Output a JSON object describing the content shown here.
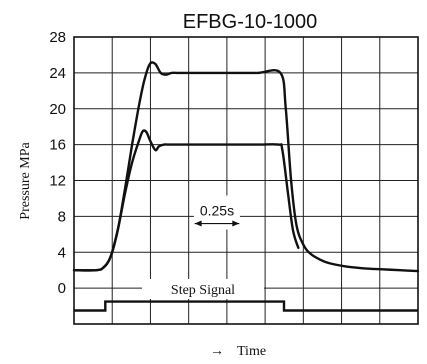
{
  "chart_data": {
    "type": "line",
    "title": "EFBG-10-1000",
    "ylabel": "Pressure  MPa",
    "xlabel": "Time",
    "xlabel_arrow": "→",
    "ylim": [
      -4,
      28
    ],
    "xlim": [
      -0.425,
      1.5
    ],
    "y_ticks": [
      "28",
      "24",
      "20",
      "16",
      "12",
      "8",
      "4",
      "0"
    ],
    "grid": true,
    "legend": "none",
    "series": [
      {
        "x": [
          -0.425,
          -0.3,
          -0.26,
          -0.22,
          -0.18,
          -0.14,
          -0.1,
          -0.06,
          -0.03,
          0.0,
          0.03,
          0.06,
          0.09,
          0.12,
          0.15,
          0.18,
          0.2,
          0.23,
          0.3,
          0.45,
          0.6,
          0.73,
          0.76,
          0.79,
          0.82,
          0.86,
          0.9,
          0.95,
          1.0,
          1.1,
          1.2,
          1.3,
          1.4,
          1.5
        ],
        "y": [
          2,
          2,
          2.3,
          3.5,
          6.5,
          11,
          16,
          20.5,
          23.3,
          25.0,
          25.0,
          24.0,
          23.8,
          24.0,
          24.0,
          24.0,
          24.0,
          24.0,
          24.0,
          24.0,
          24.0,
          24.0,
          20.0,
          12.0,
          7.0,
          4.8,
          3.8,
          3.2,
          2.8,
          2.4,
          2.2,
          2.1,
          2.0,
          1.9
        ]
      },
      {
        "x": [
          -0.425,
          -0.3,
          -0.26,
          -0.22,
          -0.18,
          -0.14,
          -0.1,
          -0.06,
          -0.04,
          -0.02,
          0.0,
          0.03,
          0.05,
          0.08,
          0.11,
          0.15,
          0.3,
          0.45,
          0.6,
          0.72,
          0.74,
          0.77,
          0.8,
          0.83
        ],
        "y": [
          2,
          2,
          2.3,
          3.5,
          6.5,
          10.5,
          14.0,
          16.5,
          17.5,
          17.4,
          16.5,
          15.4,
          15.8,
          16.0,
          16.0,
          16.0,
          16.0,
          16.0,
          16.0,
          16.0,
          15.5,
          11.0,
          6.5,
          4.5
        ]
      }
    ],
    "step_signal": {
      "label": "Step Signal",
      "x": [
        -0.425,
        -0.25,
        -0.25,
        0.75,
        0.75,
        1.5
      ],
      "y": [
        -2.5,
        -2.5,
        -1.5,
        -1.5,
        -2.5,
        -2.5
      ]
    },
    "annotations": [
      {
        "text": "0.25s",
        "x_start": 0.25,
        "x_end": 0.5
      }
    ]
  }
}
